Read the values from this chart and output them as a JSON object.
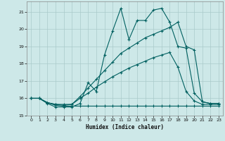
{
  "xlabel": "Humidex (Indice chaleur)",
  "background_color": "#cde8e8",
  "grid_color": "#aacaca",
  "line_color": "#006060",
  "xlim": [
    -0.5,
    23.5
  ],
  "ylim": [
    15.0,
    21.6
  ],
  "yticks": [
    15,
    16,
    17,
    18,
    19,
    20,
    21
  ],
  "xticks": [
    0,
    1,
    2,
    3,
    4,
    5,
    6,
    7,
    8,
    9,
    10,
    11,
    12,
    13,
    14,
    15,
    16,
    17,
    18,
    19,
    20,
    21,
    22,
    23
  ],
  "line1_x": [
    0,
    1,
    2,
    3,
    4,
    5,
    6,
    7,
    8,
    9,
    10,
    11,
    12,
    13,
    14,
    15,
    16,
    17,
    18,
    19,
    20,
    21,
    22,
    23
  ],
  "line1_y": [
    16.0,
    16.0,
    15.7,
    15.5,
    15.5,
    15.5,
    15.7,
    16.9,
    16.4,
    18.5,
    19.9,
    21.2,
    19.4,
    20.5,
    20.5,
    21.1,
    21.2,
    20.4,
    19.0,
    18.9,
    16.3,
    15.8,
    15.7,
    15.7
  ],
  "line2_x": [
    0,
    1,
    2,
    3,
    4,
    5,
    6,
    7,
    8,
    9,
    10,
    11,
    12,
    13,
    14,
    15,
    16,
    17,
    18,
    19,
    20,
    21,
    22,
    23
  ],
  "line2_y": [
    16.0,
    16.0,
    15.75,
    15.65,
    15.6,
    15.65,
    16.1,
    16.6,
    17.1,
    17.6,
    18.1,
    18.6,
    18.9,
    19.2,
    19.5,
    19.7,
    19.9,
    20.1,
    20.4,
    19.0,
    18.8,
    15.8,
    15.7,
    15.7
  ],
  "line3_x": [
    0,
    1,
    2,
    3,
    4,
    5,
    6,
    7,
    8,
    9,
    10,
    11,
    12,
    13,
    14,
    15,
    16,
    17,
    18,
    19,
    20,
    21,
    22,
    23
  ],
  "line3_y": [
    16.0,
    16.0,
    15.75,
    15.6,
    15.55,
    15.55,
    15.55,
    15.55,
    15.55,
    15.55,
    15.55,
    15.55,
    15.55,
    15.55,
    15.55,
    15.55,
    15.55,
    15.55,
    15.55,
    15.55,
    15.55,
    15.55,
    15.55,
    15.55
  ],
  "line4_x": [
    0,
    1,
    2,
    3,
    4,
    5,
    6,
    7,
    8,
    9,
    10,
    11,
    12,
    13,
    14,
    15,
    16,
    17,
    18,
    19,
    20,
    21,
    22,
    23
  ],
  "line4_y": [
    16.0,
    16.0,
    15.75,
    15.65,
    15.65,
    15.65,
    16.0,
    16.3,
    16.65,
    16.95,
    17.25,
    17.5,
    17.75,
    17.95,
    18.15,
    18.35,
    18.5,
    18.65,
    17.8,
    16.4,
    15.85,
    15.65,
    15.65,
    15.65
  ]
}
